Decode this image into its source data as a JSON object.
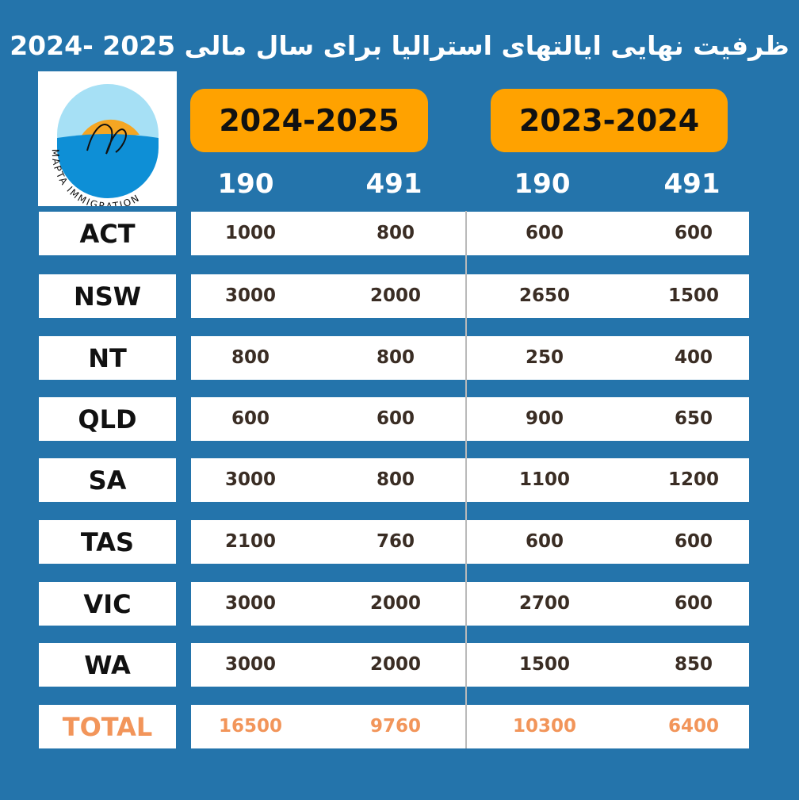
{
  "title": "ظرفیت نهایی ایالتهای استرالیا برای سال مالی 2025 -2024",
  "logo": {
    "brand_text": "MAPTA IMMIGRATION",
    "colors": {
      "sky": "#a6e0f5",
      "sun": "#f5a623",
      "sea": "#0e8fd6"
    }
  },
  "years": [
    {
      "label": "2024-2025",
      "sub": [
        "190",
        "491"
      ]
    },
    {
      "label": "2023-2024",
      "sub": [
        "190",
        "491"
      ]
    }
  ],
  "rows": [
    {
      "state": "ACT",
      "values": [
        "1000",
        "800",
        "600",
        "600"
      ]
    },
    {
      "state": "NSW",
      "values": [
        "3000",
        "2000",
        "2650",
        "1500"
      ]
    },
    {
      "state": "NT",
      "values": [
        "800",
        "800",
        "250",
        "400"
      ]
    },
    {
      "state": "QLD",
      "values": [
        "600",
        "600",
        "900",
        "650"
      ]
    },
    {
      "state": "SA",
      "values": [
        "3000",
        "800",
        "1100",
        "1200"
      ]
    },
    {
      "state": "TAS",
      "values": [
        "2100",
        "760",
        "600",
        "600"
      ]
    },
    {
      "state": "VIC",
      "values": [
        "3000",
        "2000",
        "2700",
        "600"
      ]
    },
    {
      "state": "WA",
      "values": [
        "3000",
        "2000",
        "1500",
        "850"
      ]
    }
  ],
  "total": {
    "label": "TOTAL",
    "values": [
      "16500",
      "9760",
      "10300",
      "6400"
    ]
  },
  "colors": {
    "background": "#2474ab",
    "pill": "#ffa200",
    "total": "#f2955a",
    "text": "#3a2d24"
  }
}
